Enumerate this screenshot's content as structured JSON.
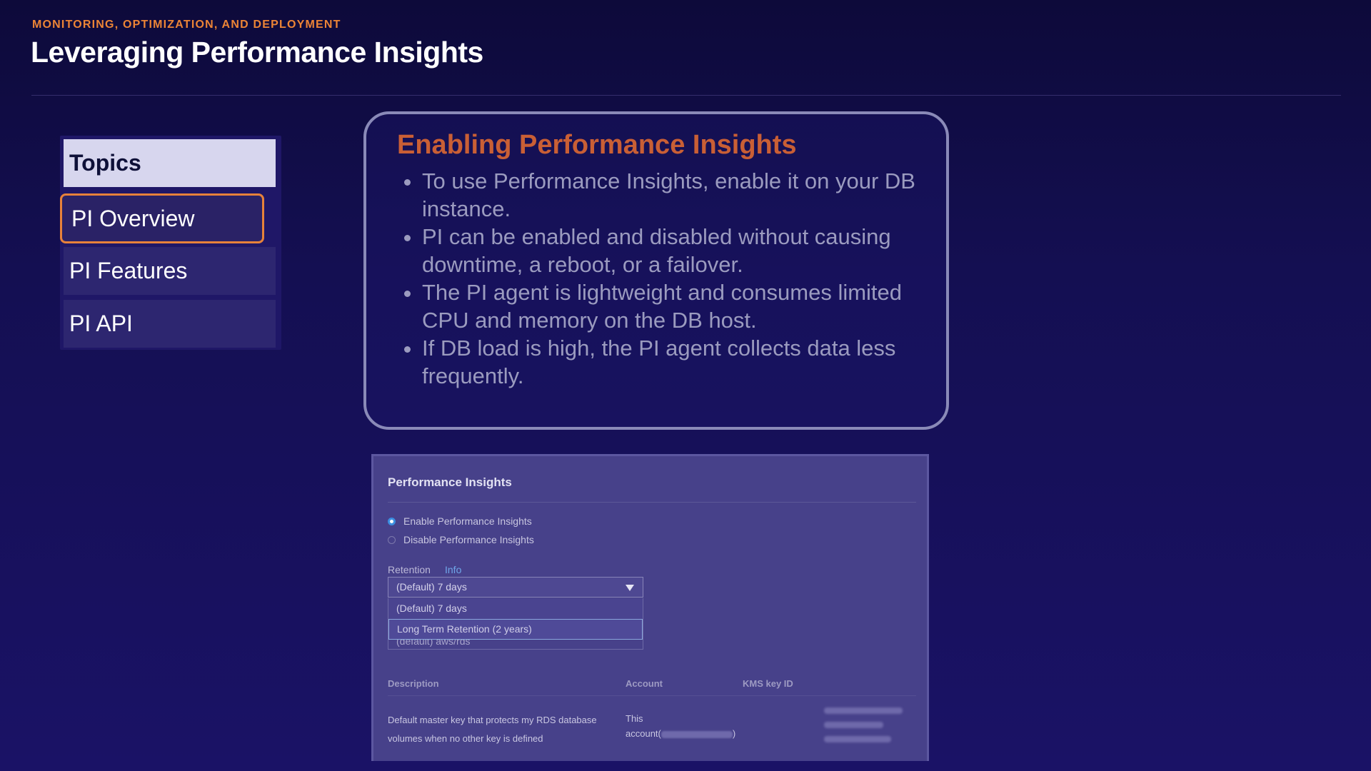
{
  "header": {
    "eyebrow": "MONITORING, OPTIMIZATION, AND DEPLOYMENT",
    "title": "Leveraging Performance Insights"
  },
  "topics": {
    "heading": "Topics",
    "items": [
      {
        "label": "PI Overview",
        "active": true
      },
      {
        "label": "PI Features",
        "active": false
      },
      {
        "label": "PI API",
        "active": false
      }
    ]
  },
  "callout": {
    "title": "Enabling Performance Insights",
    "bullets": [
      "To use Performance Insights, enable it on your DB instance.",
      "PI can be enabled and disabled without causing downtime, a reboot, or a failover.",
      "The PI agent is lightweight and consumes limited CPU and memory on the DB host.",
      "If DB load is high, the PI agent collects data less frequently."
    ]
  },
  "console": {
    "title": "Performance Insights",
    "radios": [
      {
        "label": "Enable Performance Insights",
        "selected": true
      },
      {
        "label": "Disable Performance Insights",
        "selected": false
      }
    ],
    "retention_label": "Retention",
    "info_link": "Info",
    "retention_value": "(Default) 7 days",
    "dropdown_options": [
      {
        "label": "(Default) 7 days"
      },
      {
        "label": "Long Term Retention (2 years)"
      }
    ],
    "underlying_value": "(default) aws/rds",
    "table": {
      "headers": [
        "Description",
        "Account",
        "KMS key ID"
      ],
      "row": {
        "description": "Default master key that protects my RDS database volumes when no other key is defined",
        "account_line1": "This",
        "account_line2_prefix": "account(",
        "account_line2_suffix": ")"
      }
    }
  },
  "colors": {
    "accent_orange": "#ec8436",
    "callout_title": "#c95f35",
    "radio_selected": "#3c8ee0",
    "link": "#6fa6e8"
  }
}
